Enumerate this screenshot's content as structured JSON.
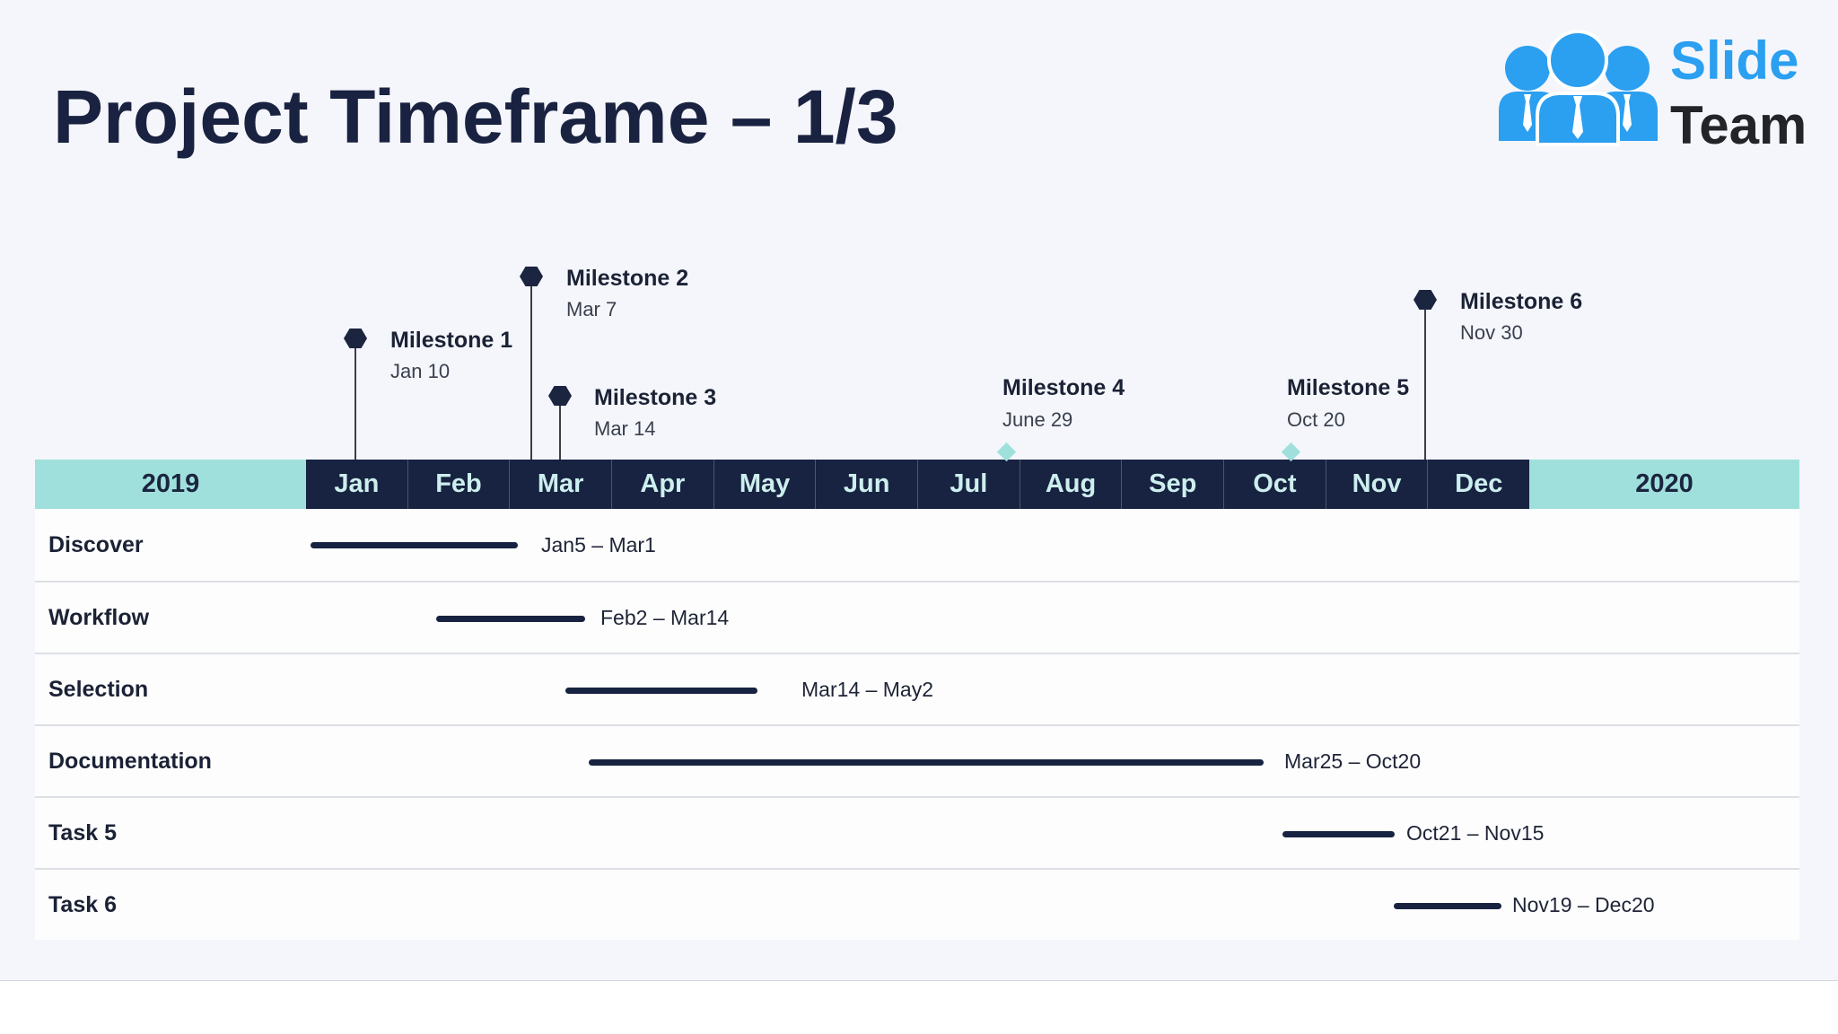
{
  "slide": {
    "title": "Project Timeframe – 1/3"
  },
  "logo": {
    "line1": "Slide",
    "line2": "Team",
    "icon": "team-people-icon"
  },
  "timeline": {
    "start_year": "2019",
    "end_year": "2020",
    "months": [
      "Jan",
      "Feb",
      "Mar",
      "Apr",
      "May",
      "Jun",
      "Jul",
      "Aug",
      "Sep",
      "Oct",
      "Nov",
      "Dec"
    ],
    "milestones": [
      {
        "title": "Milestone 1",
        "date": "Jan 10"
      },
      {
        "title": "Milestone 2",
        "date": "Mar 7"
      },
      {
        "title": "Milestone 3",
        "date": "Mar 14"
      },
      {
        "title": "Milestone 4",
        "date": "June 29"
      },
      {
        "title": "Milestone 5",
        "date": "Oct 20"
      },
      {
        "title": "Milestone 6",
        "date": "Nov 30"
      }
    ],
    "tasks": [
      {
        "name": "Discover",
        "range": "Jan5 – Mar1"
      },
      {
        "name": "Workflow",
        "range": "Feb2 – Mar14"
      },
      {
        "name": "Selection",
        "range": "Mar14 – May2"
      },
      {
        "name": "Documentation",
        "range": "Mar25 – Oct20"
      },
      {
        "name": "Task 5",
        "range": "Oct21 – Nov15"
      },
      {
        "name": "Task 6",
        "range": "Nov19 – Dec20"
      }
    ]
  },
  "colors": {
    "navy": "#172340",
    "teal": "#a0e0dc",
    "brand_blue": "#2b9ff0"
  }
}
